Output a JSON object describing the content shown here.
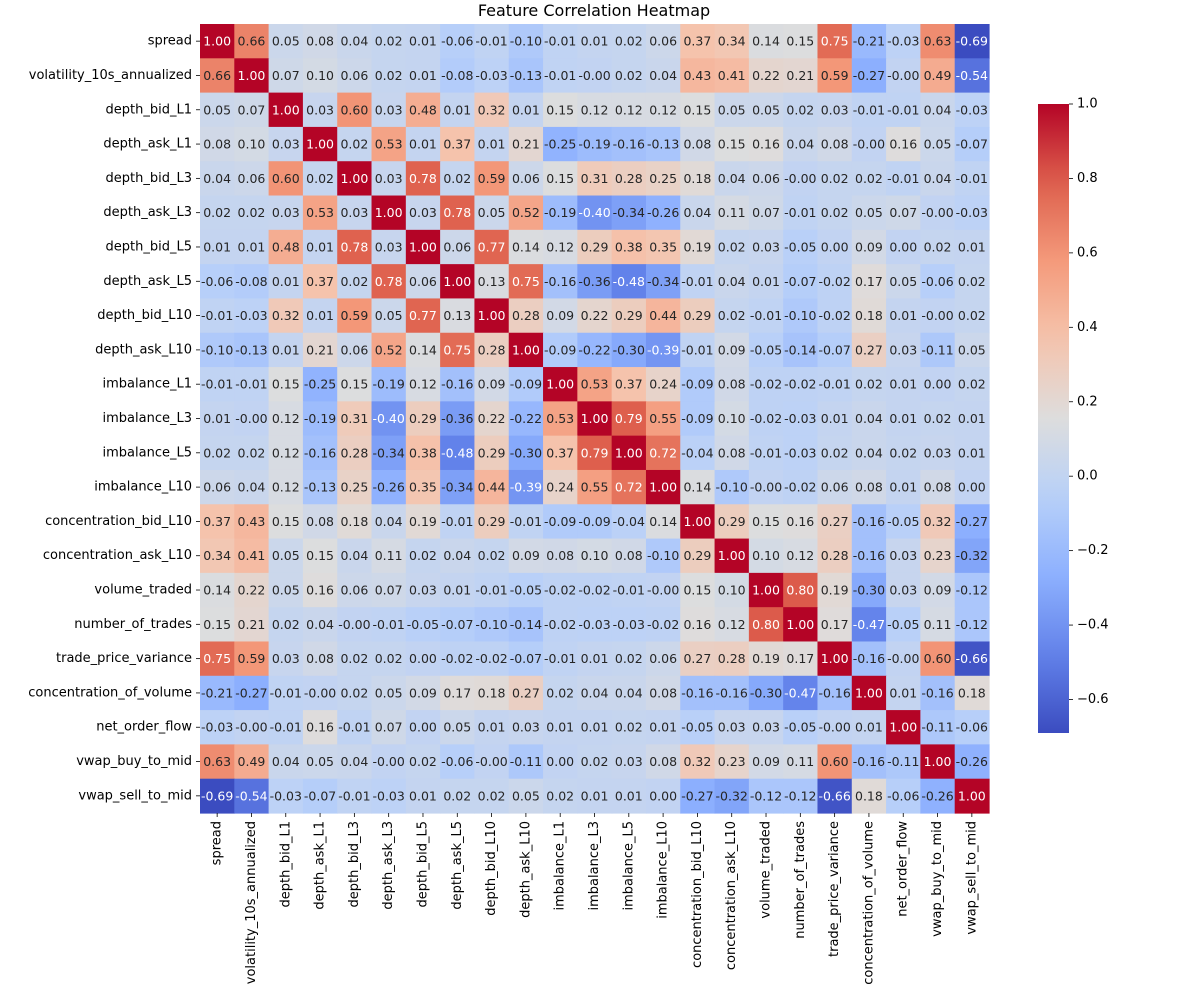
{
  "chart_data": {
    "type": "heatmap",
    "title": "Feature Correlation Heatmap",
    "xlabel": "",
    "ylabel": "",
    "labels": [
      "spread",
      "volatility_10s_annualized",
      "depth_bid_L1",
      "depth_ask_L1",
      "depth_bid_L3",
      "depth_ask_L3",
      "depth_bid_L5",
      "depth_ask_L5",
      "depth_bid_L10",
      "depth_ask_L10",
      "imbalance_L1",
      "imbalance_L3",
      "imbalance_L5",
      "imbalance_L10",
      "concentration_bid_L10",
      "concentration_ask_L10",
      "volume_traded",
      "number_of_trades",
      "trade_price_variance",
      "concentration_of_volume",
      "net_order_flow",
      "vwap_buy_to_mid",
      "vwap_sell_to_mid"
    ],
    "matrix": [
      [
        1.0,
        0.66,
        0.05,
        0.08,
        0.04,
        0.02,
        0.01,
        -0.06,
        -0.01,
        -0.1,
        -0.01,
        0.01,
        0.02,
        0.06,
        0.37,
        0.34,
        0.14,
        0.15,
        0.75,
        -0.21,
        -0.03,
        0.63,
        -0.69
      ],
      [
        0.66,
        1.0,
        0.07,
        0.1,
        0.06,
        0.02,
        0.01,
        -0.08,
        -0.03,
        -0.13,
        -0.01,
        -0.0,
        0.02,
        0.04,
        0.43,
        0.41,
        0.22,
        0.21,
        0.59,
        -0.27,
        -0.0,
        0.49,
        -0.54
      ],
      [
        0.05,
        0.07,
        1.0,
        0.03,
        0.6,
        0.03,
        0.48,
        0.01,
        0.32,
        0.01,
        0.15,
        0.12,
        0.12,
        0.12,
        0.15,
        0.05,
        0.05,
        0.02,
        0.03,
        -0.01,
        -0.01,
        0.04,
        -0.03
      ],
      [
        0.08,
        0.1,
        0.03,
        1.0,
        0.02,
        0.53,
        0.01,
        0.37,
        0.01,
        0.21,
        -0.25,
        -0.19,
        -0.16,
        -0.13,
        0.08,
        0.15,
        0.16,
        0.04,
        0.08,
        -0.0,
        0.16,
        0.05,
        -0.07
      ],
      [
        0.04,
        0.06,
        0.6,
        0.02,
        1.0,
        0.03,
        0.78,
        0.02,
        0.59,
        0.06,
        0.15,
        0.31,
        0.28,
        0.25,
        0.18,
        0.04,
        0.06,
        -0.0,
        0.02,
        0.02,
        -0.01,
        0.04,
        -0.01
      ],
      [
        0.02,
        0.02,
        0.03,
        0.53,
        0.03,
        1.0,
        0.03,
        0.78,
        0.05,
        0.52,
        -0.19,
        -0.4,
        -0.34,
        -0.26,
        0.04,
        0.11,
        0.07,
        -0.01,
        0.02,
        0.05,
        0.07,
        -0.0,
        -0.03
      ],
      [
        0.01,
        0.01,
        0.48,
        0.01,
        0.78,
        0.03,
        1.0,
        0.06,
        0.77,
        0.14,
        0.12,
        0.29,
        0.38,
        0.35,
        0.19,
        0.02,
        0.03,
        -0.05,
        0.0,
        0.09,
        0.0,
        0.02,
        0.01
      ],
      [
        -0.06,
        -0.08,
        0.01,
        0.37,
        0.02,
        0.78,
        0.06,
        1.0,
        0.13,
        0.75,
        -0.16,
        -0.36,
        -0.48,
        -0.34,
        -0.01,
        0.04,
        0.01,
        -0.07,
        -0.02,
        0.17,
        0.05,
        -0.06,
        0.02
      ],
      [
        -0.01,
        -0.03,
        0.32,
        0.01,
        0.59,
        0.05,
        0.77,
        0.13,
        1.0,
        0.28,
        0.09,
        0.22,
        0.29,
        0.44,
        0.29,
        0.02,
        -0.01,
        -0.1,
        -0.02,
        0.18,
        0.01,
        -0.0,
        0.02
      ],
      [
        -0.1,
        -0.13,
        0.01,
        0.21,
        0.06,
        0.52,
        0.14,
        0.75,
        0.28,
        1.0,
        -0.09,
        -0.22,
        -0.3,
        -0.39,
        -0.01,
        0.09,
        -0.05,
        -0.14,
        -0.07,
        0.27,
        0.03,
        -0.11,
        0.05
      ],
      [
        -0.01,
        -0.01,
        0.15,
        -0.25,
        0.15,
        -0.19,
        0.12,
        -0.16,
        0.09,
        -0.09,
        1.0,
        0.53,
        0.37,
        0.24,
        -0.09,
        0.08,
        -0.02,
        -0.02,
        -0.01,
        0.02,
        0.01,
        0.0,
        0.02
      ],
      [
        0.01,
        -0.0,
        0.12,
        -0.19,
        0.31,
        -0.4,
        0.29,
        -0.36,
        0.22,
        -0.22,
        0.53,
        1.0,
        0.79,
        0.55,
        -0.09,
        0.1,
        -0.02,
        -0.03,
        0.01,
        0.04,
        0.01,
        0.02,
        0.01
      ],
      [
        0.02,
        0.02,
        0.12,
        -0.16,
        0.28,
        -0.34,
        0.38,
        -0.48,
        0.29,
        -0.3,
        0.37,
        0.79,
        1.0,
        0.72,
        -0.04,
        0.08,
        -0.01,
        -0.03,
        0.02,
        0.04,
        0.02,
        0.03,
        0.01
      ],
      [
        0.06,
        0.04,
        0.12,
        -0.13,
        0.25,
        -0.26,
        0.35,
        -0.34,
        0.44,
        -0.39,
        0.24,
        0.55,
        0.72,
        1.0,
        0.14,
        -0.1,
        -0.0,
        -0.02,
        0.06,
        0.08,
        0.01,
        0.08,
        0.0
      ],
      [
        0.37,
        0.43,
        0.15,
        0.08,
        0.18,
        0.04,
        0.19,
        -0.01,
        0.29,
        -0.01,
        -0.09,
        -0.09,
        -0.04,
        0.14,
        1.0,
        0.29,
        0.15,
        0.16,
        0.27,
        -0.16,
        -0.05,
        0.32,
        -0.27
      ],
      [
        0.34,
        0.41,
        0.05,
        0.15,
        0.04,
        0.11,
        0.02,
        0.04,
        0.02,
        0.09,
        0.08,
        0.1,
        0.08,
        -0.1,
        0.29,
        1.0,
        0.1,
        0.12,
        0.28,
        -0.16,
        0.03,
        0.23,
        -0.32
      ],
      [
        0.14,
        0.22,
        0.05,
        0.16,
        0.06,
        0.07,
        0.03,
        0.01,
        -0.01,
        -0.05,
        -0.02,
        -0.02,
        -0.01,
        -0.0,
        0.15,
        0.1,
        1.0,
        0.8,
        0.19,
        -0.3,
        0.03,
        0.09,
        -0.12
      ],
      [
        0.15,
        0.21,
        0.02,
        0.04,
        -0.0,
        -0.01,
        -0.05,
        -0.07,
        -0.1,
        -0.14,
        -0.02,
        -0.03,
        -0.03,
        -0.02,
        0.16,
        0.12,
        0.8,
        1.0,
        0.17,
        -0.47,
        -0.05,
        0.11,
        -0.12
      ],
      [
        0.75,
        0.59,
        0.03,
        0.08,
        0.02,
        0.02,
        0.0,
        -0.02,
        -0.02,
        -0.07,
        -0.01,
        0.01,
        0.02,
        0.06,
        0.27,
        0.28,
        0.19,
        0.17,
        1.0,
        -0.16,
        -0.0,
        0.6,
        -0.66
      ],
      [
        -0.21,
        -0.27,
        -0.01,
        -0.0,
        0.02,
        0.05,
        0.09,
        0.17,
        0.18,
        0.27,
        0.02,
        0.04,
        0.04,
        0.08,
        -0.16,
        -0.16,
        -0.3,
        -0.47,
        -0.16,
        1.0,
        0.01,
        -0.16,
        0.18
      ],
      [
        -0.03,
        -0.0,
        -0.01,
        0.16,
        -0.01,
        0.07,
        0.0,
        0.05,
        0.01,
        0.03,
        0.01,
        0.01,
        0.02,
        0.01,
        -0.05,
        0.03,
        0.03,
        -0.05,
        -0.0,
        0.01,
        1.0,
        -0.11,
        -0.06
      ],
      [
        0.63,
        0.49,
        0.04,
        0.05,
        0.04,
        -0.0,
        0.02,
        -0.06,
        -0.0,
        -0.11,
        0.0,
        0.02,
        0.03,
        0.08,
        0.32,
        0.23,
        0.09,
        0.11,
        0.6,
        -0.16,
        -0.11,
        1.0,
        -0.26
      ],
      [
        -0.69,
        -0.54,
        -0.03,
        -0.07,
        -0.01,
        -0.03,
        0.01,
        0.02,
        0.02,
        0.05,
        0.02,
        0.01,
        0.01,
        0.0,
        -0.27,
        -0.32,
        -0.12,
        -0.12,
        -0.66,
        0.18,
        -0.06,
        -0.26,
        1.0
      ]
    ],
    "colorbar": {
      "colormap": "coolwarm",
      "vmin": -0.69,
      "vmax": 1.0,
      "ticks": [
        -0.6,
        -0.4,
        -0.2,
        0.0,
        0.2,
        0.4,
        0.6,
        0.8,
        1.0
      ],
      "tick_labels": [
        "−0.6",
        "−0.4",
        "−0.2",
        "0.0",
        "0.2",
        "0.4",
        "0.6",
        "0.8",
        "1.0"
      ]
    },
    "annotation_format": "2 decimals"
  }
}
